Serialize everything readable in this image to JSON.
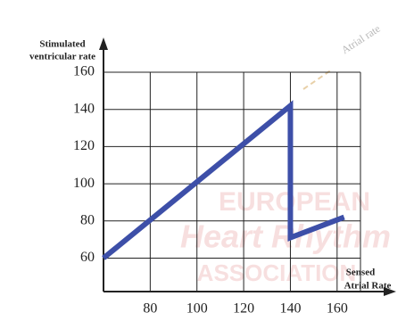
{
  "chart_data": {
    "type": "line",
    "ylabel": [
      "Stimulated",
      "ventricular rate"
    ],
    "xlabel": [
      "Sensed",
      "Atrial Rate"
    ],
    "annotation": "Atrial rate",
    "watermark": [
      "EUROPEAN",
      "Heart Rhythm",
      "ASSOCIATION"
    ],
    "xlim": [
      60,
      170
    ],
    "ylim": [
      42,
      160
    ],
    "xticks": [
      80,
      100,
      120,
      140,
      160
    ],
    "yticks": [
      60,
      80,
      100,
      120,
      140,
      160
    ],
    "grid": true,
    "series": [
      {
        "color": "#3d4fa8",
        "x": [
          60,
          140,
          140,
          163
        ],
        "values": [
          60,
          142,
          71,
          82
        ]
      }
    ]
  }
}
